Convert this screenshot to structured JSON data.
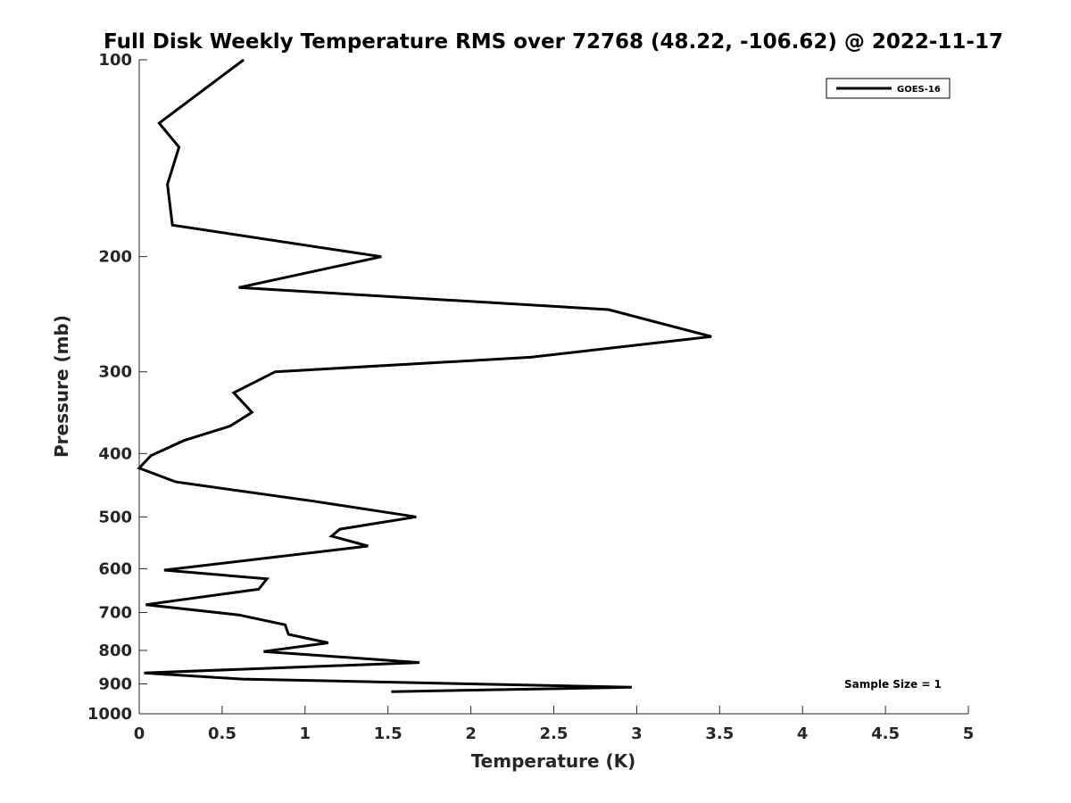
{
  "chart_data": {
    "type": "line",
    "title": "Full Disk Weekly Temperature RMS over 72768 (48.22, -106.62) @ 2022-11-17",
    "xlabel": "Temperature (K)",
    "ylabel": "Pressure (mb)",
    "xlim": [
      0,
      5
    ],
    "ylim": [
      100,
      1000
    ],
    "y_scale": "log",
    "y_reversed": true,
    "x_ticks": [
      "0",
      "0.5",
      "1",
      "1.5",
      "2",
      "2.5",
      "3",
      "3.5",
      "4",
      "4.5",
      "5"
    ],
    "y_ticks": [
      "100",
      "200",
      "300",
      "400",
      "500",
      "600",
      "700",
      "800",
      "900",
      "1000"
    ],
    "grid": false,
    "legend_position": "top-right",
    "annotation": "Sample Size = 1",
    "series": [
      {
        "name": "GOES-16",
        "color": "#000000",
        "x": [
          0.63,
          0.12,
          0.24,
          0.17,
          0.2,
          1.46,
          0.6,
          2.83,
          3.45,
          2.36,
          0.82,
          0.57,
          0.68,
          0.55,
          0.27,
          0.07,
          0.0,
          0.22,
          1.05,
          1.67,
          1.21,
          1.16,
          1.38,
          0.15,
          0.77,
          0.72,
          0.04,
          0.6,
          0.88,
          0.9,
          1.14,
          0.75,
          1.69,
          0.03,
          0.62,
          2.97,
          1.52
        ],
        "y": [
          100,
          125,
          136,
          155,
          179,
          200,
          223,
          241,
          265,
          285,
          300,
          323,
          346,
          363,
          382,
          403,
          421,
          442,
          473,
          500,
          522,
          535,
          554,
          603,
          622,
          645,
          681,
          706,
          731,
          756,
          779,
          803,
          835,
          866,
          885,
          911,
          925
        ]
      }
    ]
  }
}
